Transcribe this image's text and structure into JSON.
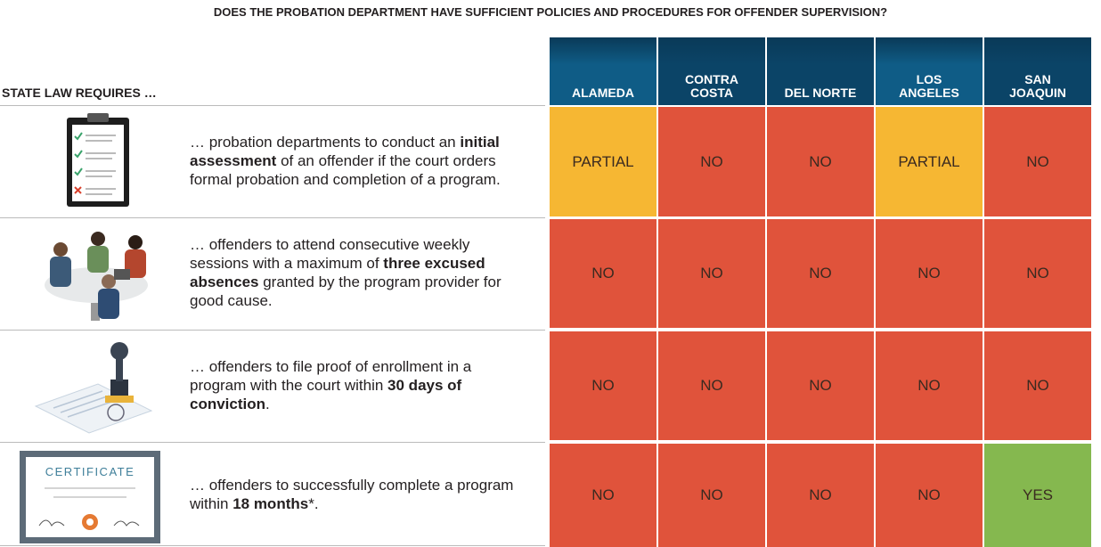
{
  "title": "DOES THE PROBATION DEPARTMENT HAVE SUFFICIENT POLICIES AND PROCEDURES FOR OFFENDER SUPERVISION?",
  "table": {
    "row_header": "STATE LAW REQUIRES …",
    "columns": [
      "ALAMEDA",
      "CONTRA COSTA",
      "DEL NORTE",
      "LOS ANGELES",
      "SAN JOAQUIN"
    ],
    "status_colors": {
      "PARTIAL": "#f6b733",
      "NO": "#e0533b",
      "YES": "#85b84f"
    },
    "rows": [
      {
        "text": [
          {
            "text": "… probation departments to conduct an "
          },
          {
            "text": "initial assessment",
            "bold": true
          },
          {
            "text": " of an offender if the court orders formal probation and completion of a program."
          }
        ],
        "cells": [
          "PARTIAL",
          "NO",
          "NO",
          "PARTIAL",
          "NO"
        ]
      },
      {
        "text": [
          {
            "text": "… offenders to attend consecutive weekly sessions with a maximum of "
          },
          {
            "text": "three excused absences",
            "bold": true
          },
          {
            "text": " granted by the program provider for good cause."
          }
        ],
        "cells": [
          "NO",
          "NO",
          "NO",
          "NO",
          "NO"
        ]
      },
      {
        "text": [
          {
            "text": "… offenders to file proof of enrollment in a program with the court within "
          },
          {
            "text": "30 days of conviction",
            "bold": true
          },
          {
            "text": "."
          }
        ],
        "cells": [
          "NO",
          "NO",
          "NO",
          "NO",
          "NO"
        ]
      },
      {
        "icon_label": "CERTIFICATE",
        "text": [
          {
            "text": "… offenders to successfully complete a program within "
          },
          {
            "text": "18 months",
            "bold": true
          },
          {
            "text": "*."
          }
        ],
        "cells": [
          "NO",
          "NO",
          "NO",
          "NO",
          "YES"
        ]
      }
    ]
  }
}
